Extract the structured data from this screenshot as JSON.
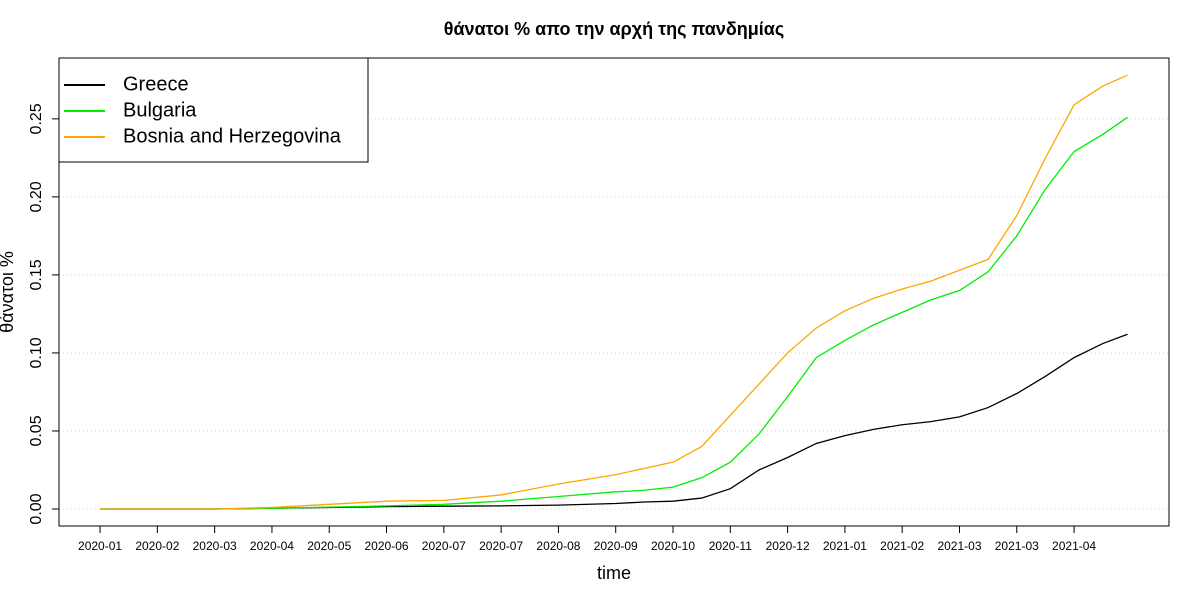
{
  "chart_data": {
    "type": "line",
    "title": "θάνατοι % απο την αρχή της πανδημίας",
    "xlabel": "time",
    "ylabel": "θάνατοι %",
    "x": [
      0,
      30,
      60,
      90,
      120,
      150,
      180,
      210,
      240,
      270,
      285,
      300,
      315,
      330,
      345,
      360,
      375,
      390,
      405,
      420,
      435,
      450,
      465,
      480,
      495,
      510,
      525,
      538
    ],
    "series": [
      {
        "name": "Greece",
        "color": "#000000",
        "values": [
          0,
          0,
          0,
          0.0005,
          0.001,
          0.0015,
          0.0018,
          0.002,
          0.0025,
          0.0035,
          0.0045,
          0.005,
          0.007,
          0.013,
          0.025,
          0.033,
          0.042,
          0.047,
          0.051,
          0.054,
          0.056,
          0.059,
          0.065,
          0.074,
          0.085,
          0.097,
          0.106,
          0.112
        ]
      },
      {
        "name": "Bulgaria",
        "color": "#00ee00",
        "values": [
          0,
          0,
          0,
          0.0005,
          0.0012,
          0.002,
          0.003,
          0.005,
          0.008,
          0.011,
          0.012,
          0.014,
          0.02,
          0.03,
          0.048,
          0.072,
          0.097,
          0.108,
          0.118,
          0.126,
          0.134,
          0.14,
          0.152,
          0.175,
          0.205,
          0.229,
          0.24,
          0.251
        ]
      },
      {
        "name": "Bosnia and Herzegovina",
        "color": "#ffa500",
        "values": [
          0,
          0,
          0,
          0.001,
          0.003,
          0.005,
          0.0055,
          0.009,
          0.016,
          0.022,
          0.026,
          0.03,
          0.04,
          0.06,
          0.08,
          0.1,
          0.116,
          0.127,
          0.135,
          0.141,
          0.146,
          0.153,
          0.16,
          0.188,
          0.225,
          0.259,
          0.271,
          0.278
        ]
      }
    ],
    "xlim": [
      -21.5,
      559.7
    ],
    "xticks": [
      {
        "value": 0,
        "label": "2020-01"
      },
      {
        "value": 30,
        "label": "2020-02"
      },
      {
        "value": 60,
        "label": "2020-03"
      },
      {
        "value": 90,
        "label": "2020-04"
      },
      {
        "value": 120,
        "label": "2020-05"
      },
      {
        "value": 150,
        "label": "2020-06"
      },
      {
        "value": 180,
        "label": "2020-07"
      },
      {
        "value": 210,
        "label": "2020-07"
      },
      {
        "value": 240,
        "label": "2020-08"
      },
      {
        "value": 270,
        "label": "2020-09"
      },
      {
        "value": 300,
        "label": "2020-10"
      },
      {
        "value": 330,
        "label": "2020-11"
      },
      {
        "value": 360,
        "label": "2020-12"
      },
      {
        "value": 390,
        "label": "2021-01"
      },
      {
        "value": 420,
        "label": "2021-02"
      },
      {
        "value": 450,
        "label": "2021-03"
      },
      {
        "value": 480,
        "label": "2021-03"
      },
      {
        "value": 510,
        "label": "2021-04"
      }
    ],
    "ylim": [
      -0.0109,
      0.289
    ],
    "yticks": [
      {
        "value": 0,
        "label": "0.00"
      },
      0.05,
      {
        "value": 0.1,
        "label": "0.10"
      },
      0.15,
      {
        "value": 0.2,
        "label": "0.20"
      },
      0.25
    ],
    "grid": true,
    "legend": "top-left"
  }
}
